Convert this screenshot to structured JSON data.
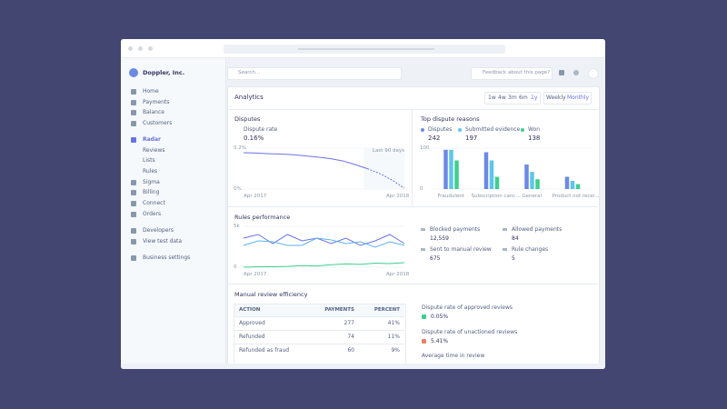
{
  "sidebar": {
    "company": "Doppler, Inc.",
    "nav": [
      "Home",
      "Payments",
      "Balance",
      "Customers",
      "Radar",
      "Reviews",
      "Lists",
      "Rules",
      "Sigma",
      "Billing",
      "Connect",
      "Orders",
      "Developers",
      "View test data",
      "Business settings"
    ]
  },
  "topbar": {
    "search": "Search...",
    "feedback": "Feedback about this page?"
  },
  "header": {
    "title": "Analytics",
    "ranges": [
      "1w",
      "4w",
      "3m",
      "6m",
      "1y"
    ],
    "intervals": [
      "Weekly",
      "Monthly"
    ]
  },
  "disputes": {
    "title": "Disputes",
    "metric": "Dispute rate",
    "value": "0.16%",
    "note": "Last 90 days",
    "chart": {
      "ylim": [
        0,
        0.2
      ],
      "yticks": [
        {
          "value": 0.2,
          "label": "0.2%"
        },
        {
          "value": 0,
          "label": "0%"
        }
      ],
      "xlabels": [
        "Apr 2017",
        "Apr 2018"
      ],
      "color": "#6772e5",
      "values": [
        0.178,
        0.176,
        0.173,
        0.171,
        0.168,
        0.162,
        0.156,
        0.149,
        0.138,
        0.12,
        0.1,
        0.076,
        0.044,
        0.004
      ]
    }
  },
  "reasons": {
    "title": "Top dispute reasons",
    "legend": [
      {
        "name": "Disputes",
        "value": "242",
        "color": "#6c8ae4"
      },
      {
        "name": "Submitted evidence",
        "value": "197",
        "color": "#5fc5ec"
      },
      {
        "name": "Won",
        "value": "138",
        "color": "#3ecf8e"
      }
    ],
    "chart": {
      "ylim": [
        0,
        100
      ],
      "yticks": [
        100,
        0
      ],
      "categories": [
        "Fraudulent",
        "Subscription canc...",
        "General",
        "Product not recei..."
      ],
      "series": [
        {
          "values": [
            96,
            90,
            60,
            30
          ]
        },
        {
          "values": [
            96,
            70,
            42,
            20
          ]
        },
        {
          "values": [
            70,
            30,
            24,
            12
          ]
        }
      ]
    }
  },
  "rules": {
    "title": "Rules performance",
    "chart": {
      "ylim": [
        0,
        5000
      ],
      "yticks": [
        {
          "value": 5000,
          "label": "5k"
        },
        0
      ],
      "xlabels": [
        "Apr 2017",
        "Apr 2018"
      ],
      "series": [
        {
          "color": "#6772e5",
          "values": [
            3556,
            4000,
            2889,
            4000,
            3222,
            3556,
            2889,
            3556,
            2667,
            3222,
            4000,
            2889
          ]
        },
        {
          "color": "#5fb2ec",
          "values": [
            2667,
            3222,
            3111,
            2667,
            2667,
            3556,
            3333,
            2889,
            3111,
            2444,
            3111,
            2667
          ]
        },
        {
          "color": "#3ecf8e",
          "values": [
            0,
            50,
            50,
            100,
            200,
            150,
            300,
            400,
            350,
            500,
            450,
            550
          ]
        }
      ]
    },
    "stats": [
      {
        "label": "Blocked payments",
        "value": "12,559"
      },
      {
        "label": "Allowed payments",
        "value": "84"
      },
      {
        "label": "Sent to manual review",
        "value": "675"
      },
      {
        "label": "Rule changes",
        "value": "5"
      }
    ]
  },
  "review": {
    "title": "Manual review efficiency",
    "table": {
      "headers": [
        "ACTION",
        "PAYMENTS",
        "PERCENT"
      ],
      "rows": [
        [
          "Approved",
          "277",
          "41%"
        ],
        [
          "Refunded",
          "74",
          "11%"
        ],
        [
          "Refunded as fraud",
          "60",
          "9%"
        ]
      ]
    },
    "metrics": [
      {
        "label": "Dispute rate of approved reviews",
        "value": "0.05%"
      },
      {
        "label": "Dispute rate of unactioned reviews",
        "value": "5.41%"
      },
      {
        "label": "Average time in review"
      }
    ]
  }
}
